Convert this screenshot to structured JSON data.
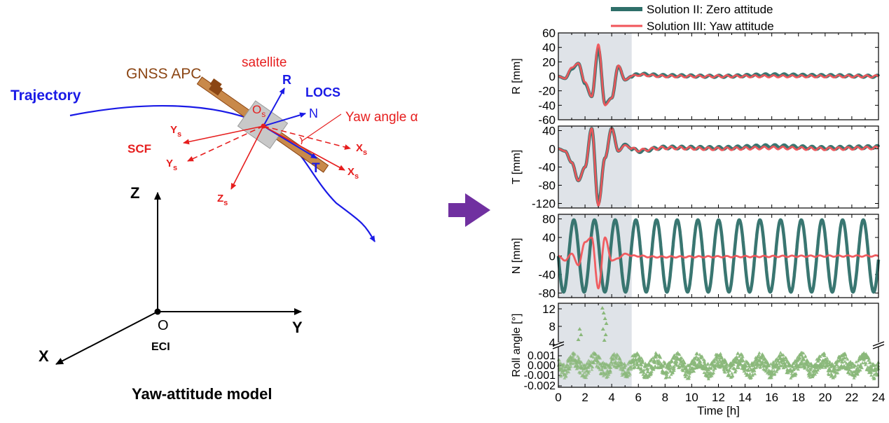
{
  "diagram": {
    "trajectory_label": "Trajectory",
    "satellite_label": "satellite",
    "apc_label": "GNSS APC",
    "locs_label": "LOCS",
    "scf_label": "SCF",
    "r_label": "R",
    "n_label": "N",
    "t_label": "T",
    "yaw_label": "Yaw angle α",
    "os_label": "O",
    "os_sub": "s",
    "ys_label": "Y",
    "ys_sub": "s",
    "ysp_label": "Y",
    "ysp_sub": "s",
    "xs_label": "X",
    "xs_sub": "s",
    "xsp_label": "X",
    "xsp_sub": "s",
    "zs_label": "Z",
    "zs_sub": "s",
    "z_axis": "Z",
    "y_axis": "Y",
    "x_axis": "X",
    "origin_label": "O",
    "eci_label": "ECI",
    "caption": "Yaw-attitude model",
    "colors": {
      "blue": "#1a1ae6",
      "red": "#e61e1e",
      "brown": "#8b4513",
      "panel_bg": "#dfe3e8"
    }
  },
  "legend": {
    "items": [
      {
        "label": "Solution II: Zero attitude",
        "color": "#2e6f69"
      },
      {
        "label": "Solution III: Yaw attitude",
        "color": "#f0555a"
      }
    ]
  },
  "chart_data": [
    {
      "type": "line",
      "ylabel": "R [mm]",
      "xlim": [
        0,
        24
      ],
      "ylim": [
        -60,
        60
      ],
      "yticks": [
        "60",
        "40",
        "20",
        "0",
        "-20",
        "-40",
        "-60"
      ],
      "highlight_x": [
        0,
        5.5
      ],
      "series": [
        {
          "name": "Solution II: Zero attitude",
          "color": "#2e6f69",
          "x": [
            0,
            0.5,
            1,
            1.5,
            2,
            2.5,
            3,
            3.5,
            4,
            4.5,
            5,
            5.5,
            6,
            8,
            12,
            16,
            20,
            24
          ],
          "values": [
            0,
            -3,
            10,
            18,
            -10,
            -28,
            38,
            -38,
            -30,
            14,
            -5,
            0,
            3,
            1,
            0,
            2,
            1,
            0
          ]
        },
        {
          "name": "Solution III: Yaw attitude",
          "color": "#f0555a",
          "x": [
            0,
            0.5,
            1,
            1.5,
            2,
            2.5,
            3,
            3.5,
            4,
            4.5,
            5,
            5.5,
            6,
            8,
            12,
            16,
            20,
            24
          ],
          "values": [
            0,
            -3,
            12,
            18,
            -8,
            -28,
            44,
            -40,
            -30,
            15,
            -5,
            0,
            2,
            0,
            0,
            0,
            0,
            0
          ]
        }
      ]
    },
    {
      "type": "line",
      "ylabel": "T [mm]",
      "xlim": [
        0,
        24
      ],
      "ylim": [
        -130,
        50
      ],
      "yticks": [
        "40",
        "0",
        "-40",
        "-80",
        "-120"
      ],
      "highlight_x": [
        0,
        5.5
      ],
      "series": [
        {
          "name": "Solution II: Zero attitude",
          "color": "#2e6f69",
          "x": [
            0,
            0.5,
            1,
            1.5,
            2,
            2.5,
            3,
            3.5,
            4,
            4.5,
            5,
            5.5,
            6,
            8,
            12,
            16,
            20,
            24
          ],
          "values": [
            0,
            -5,
            -30,
            -70,
            -40,
            45,
            -120,
            -20,
            45,
            -5,
            10,
            0,
            -5,
            3,
            2,
            6,
            2,
            4
          ]
        },
        {
          "name": "Solution III: Yaw attitude",
          "color": "#f0555a",
          "x": [
            0,
            0.5,
            1,
            1.5,
            2,
            2.5,
            3,
            3.5,
            4,
            4.5,
            5,
            5.5,
            6,
            8,
            12,
            16,
            20,
            24
          ],
          "values": [
            0,
            -5,
            -30,
            -70,
            -40,
            45,
            -125,
            -20,
            45,
            -5,
            8,
            0,
            -3,
            2,
            0,
            2,
            0,
            2
          ]
        }
      ]
    },
    {
      "type": "line",
      "ylabel": "N [mm]",
      "xlim": [
        0,
        24
      ],
      "ylim": [
        -90,
        90
      ],
      "yticks": [
        "80",
        "40",
        "0",
        "-40",
        "-80"
      ],
      "highlight_x": [
        0,
        5.5
      ],
      "series": [
        {
          "name": "Solution II: Zero attitude",
          "color": "#2e6f69",
          "amplitude": 78,
          "period_h": 1.55
        },
        {
          "name": "Solution III: Yaw attitude",
          "color": "#f0555a",
          "x": [
            0,
            0.5,
            1,
            1.5,
            2,
            2.5,
            3,
            3.5,
            4,
            4.5,
            5,
            5.5,
            6,
            7,
            24
          ],
          "values": [
            0,
            -10,
            5,
            -20,
            30,
            40,
            -70,
            40,
            -10,
            -5,
            5,
            0,
            0,
            -2,
            0
          ]
        }
      ]
    },
    {
      "type": "scatter",
      "ylabel": "Roll angle [°]",
      "xlim": [
        0,
        24
      ],
      "broken_axis": true,
      "yticks_upper": [
        "12",
        "8",
        "4"
      ],
      "yticks_lower": [
        "0.001",
        "0.000",
        "-0.001",
        "-0.002"
      ],
      "highlight_x": [
        0,
        5.5
      ],
      "series": [
        {
          "name": "Roll angle",
          "color": "#8ab87a"
        }
      ],
      "xlabel": "Time [h]",
      "xticks": [
        "0",
        "2",
        "4",
        "6",
        "8",
        "10",
        "12",
        "14",
        "16",
        "18",
        "20",
        "22",
        "24"
      ]
    }
  ]
}
